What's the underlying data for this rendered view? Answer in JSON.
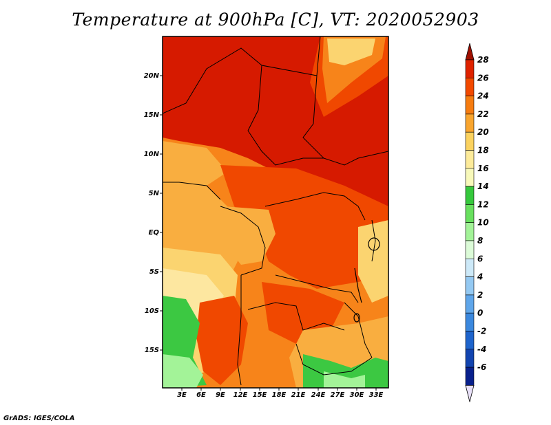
{
  "title": "Temperature at 900hPa [C], VT: 2020052903",
  "credit": "GrADS: IGES/COLA",
  "map": {
    "lat_labels": [
      "20N",
      "15N",
      "10N",
      "5N",
      "EQ",
      "5S",
      "10S",
      "15S"
    ],
    "lon_labels": [
      "3E",
      "6E",
      "9E",
      "12E",
      "15E",
      "18E",
      "21E",
      "24E",
      "27E",
      "30E",
      "33E"
    ]
  },
  "colorbar": {
    "labels": [
      "28",
      "26",
      "24",
      "22",
      "20",
      "18",
      "16",
      "14",
      "12",
      "10",
      "8",
      "6",
      "4",
      "2",
      "0",
      "-2",
      "-4",
      "-6"
    ],
    "colors_top_to_bottom": [
      "#a01000",
      "#df2200",
      "#f24900",
      "#f67c10",
      "#f9a52e",
      "#fbd25f",
      "#fdeb9a",
      "#f8f9ba",
      "#35c83c",
      "#68e05e",
      "#a3f398",
      "#dcfbd8",
      "#cde9f8",
      "#94c9f2",
      "#5fa6ea",
      "#3b88de",
      "#1e64cc",
      "#1244b0",
      "#08208c"
    ],
    "arrow_top_color": "#a01000",
    "arrow_bottom_color": "#e8e0f8"
  },
  "colors": {
    "hot": "#d61a00",
    "warm": "#f04800",
    "orange": "#f7841a",
    "light_orange": "#f9ae40",
    "yellow": "#fbd470",
    "pale_yellow": "#fde7a0",
    "green": "#3cc842",
    "light_green": "#a3f398",
    "border": "#000000"
  }
}
